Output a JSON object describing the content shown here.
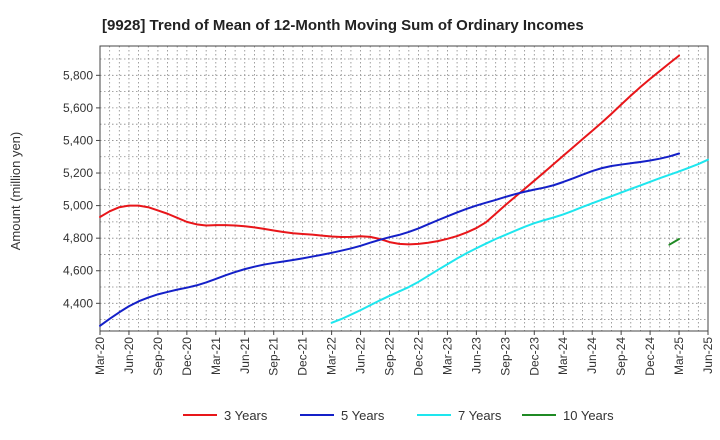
{
  "chart_data": {
    "type": "line",
    "title": "[9928]  Trend of Mean of 12-Month Moving Sum of Ordinary Incomes",
    "xlabel": "",
    "ylabel": "Amount (million yen)",
    "ylim": [
      4230,
      5980
    ],
    "yticks": [
      4400,
      4600,
      4800,
      5000,
      5200,
      5400,
      5600,
      5800
    ],
    "ytick_labels": [
      "4,400",
      "4,600",
      "4,800",
      "5,000",
      "5,200",
      "5,400",
      "5,600",
      "5,800"
    ],
    "x_start": "Mar-20",
    "x_end": "Jun-25",
    "x_ticks": [
      "Mar-20",
      "Jun-20",
      "Sep-20",
      "Dec-20",
      "Mar-21",
      "Jun-21",
      "Sep-21",
      "Dec-21",
      "Mar-22",
      "Jun-22",
      "Sep-22",
      "Dec-22",
      "Mar-23",
      "Jun-23",
      "Sep-23",
      "Dec-23",
      "Mar-24",
      "Jun-24",
      "Sep-24",
      "Dec-24",
      "Mar-25",
      "Jun-25"
    ],
    "grid": true,
    "legend_position": "bottom",
    "series": [
      {
        "name": "3 Years",
        "color": "#e8161a",
        "start_month_index": 0,
        "values": [
          4930,
          4965,
          4990,
          5000,
          5000,
          4990,
          4970,
          4950,
          4925,
          4900,
          4885,
          4878,
          4880,
          4880,
          4878,
          4873,
          4866,
          4857,
          4847,
          4838,
          4830,
          4826,
          4822,
          4816,
          4810,
          4807,
          4808,
          4812,
          4808,
          4795,
          4776,
          4765,
          4762,
          4765,
          4772,
          4782,
          4796,
          4813,
          4835,
          4862,
          4898,
          4950,
          5003,
          5053,
          5103,
          5153,
          5203,
          5255,
          5306,
          5357,
          5408,
          5459,
          5510,
          5564,
          5620,
          5675,
          5728,
          5778,
          5826,
          5874,
          5921
        ]
      },
      {
        "name": "5 Years",
        "color": "#1420c8",
        "start_month_index": 0,
        "values": [
          4262,
          4305,
          4345,
          4382,
          4412,
          4435,
          4455,
          4470,
          4484,
          4496,
          4510,
          4528,
          4550,
          4572,
          4592,
          4610,
          4625,
          4638,
          4648,
          4657,
          4666,
          4676,
          4687,
          4698,
          4710,
          4723,
          4737,
          4753,
          4772,
          4790,
          4806,
          4820,
          4838,
          4860,
          4885,
          4910,
          4934,
          4958,
          4980,
          5000,
          5018,
          5035,
          5053,
          5070,
          5085,
          5098,
          5110,
          5125,
          5145,
          5167,
          5190,
          5212,
          5230,
          5243,
          5252,
          5260,
          5268,
          5277,
          5288,
          5302,
          5320
        ]
      },
      {
        "name": "7 Years",
        "color": "#1ee6ee",
        "start_month_index": 24,
        "values": [
          4280,
          4303,
          4330,
          4358,
          4388,
          4418,
          4446,
          4473,
          4500,
          4532,
          4568,
          4605,
          4640,
          4675,
          4708,
          4738,
          4767,
          4795,
          4820,
          4845,
          4870,
          4892,
          4910,
          4927,
          4946,
          4968,
          4992,
          5014,
          5036,
          5058,
          5080,
          5102,
          5124,
          5146,
          5168,
          5189,
          5210,
          5232,
          5255,
          5282
        ]
      },
      {
        "name": "10 Years",
        "color": "#1f8a24",
        "start_month_index": 59,
        "values": [
          4760,
          4795
        ]
      }
    ]
  }
}
